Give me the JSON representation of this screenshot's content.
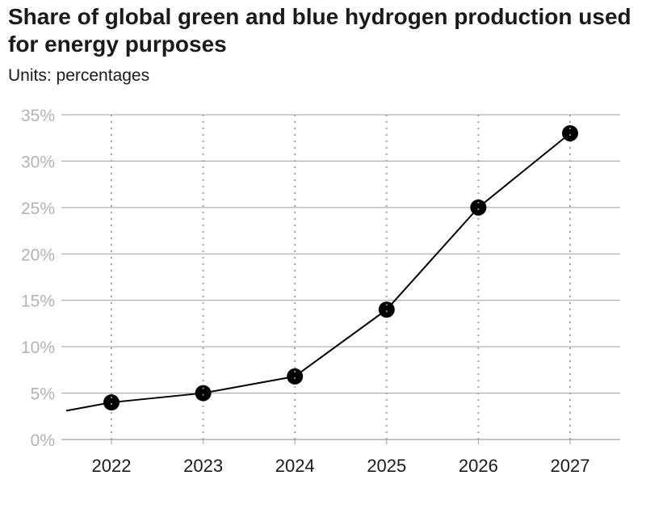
{
  "title": "Share of global green and blue hydrogen production used for energy purposes",
  "units_label": "Units:",
  "units_value": "percentages",
  "colors": {
    "line": "#000000",
    "grid": "#9e9e9e",
    "vgrid": "#a6a6a6",
    "axis_text": "#b3b3b3"
  },
  "chart_data": {
    "type": "line",
    "title": "Share of global green and blue hydrogen production used for energy purposes",
    "xlabel": "",
    "ylabel": "",
    "x": [
      "2022",
      "2023",
      "2024",
      "2025",
      "2026",
      "2027"
    ],
    "y_ticks": [
      "0%",
      "5%",
      "10%",
      "15%",
      "20%",
      "25%",
      "30%",
      "35%"
    ],
    "ylim": [
      0,
      35
    ],
    "grid": true,
    "series": [
      {
        "values": [
          4,
          5,
          6.8,
          14,
          25,
          33
        ],
        "line_start_value": 3.1
      }
    ]
  }
}
